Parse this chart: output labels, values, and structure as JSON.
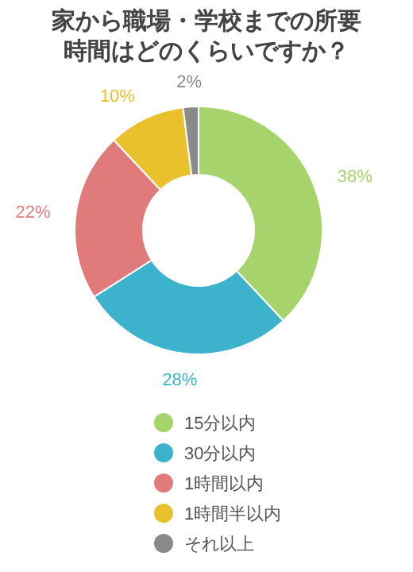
{
  "chart_data": {
    "type": "donut",
    "title": "家から職場・学校までの所要時間はどのくらいですか？",
    "categories": [
      "15分以内",
      "30分以内",
      "1時間以内",
      "1時間半以内",
      "それ以上"
    ],
    "values": [
      38,
      28,
      22,
      10,
      2
    ],
    "colors": [
      "#a6d36b",
      "#3cb2cc",
      "#e17b7b",
      "#e9c12c",
      "#8a8a8a"
    ],
    "value_labels": [
      "38%",
      "28%",
      "22%",
      "10%",
      "2%"
    ],
    "legend": "bottom"
  }
}
